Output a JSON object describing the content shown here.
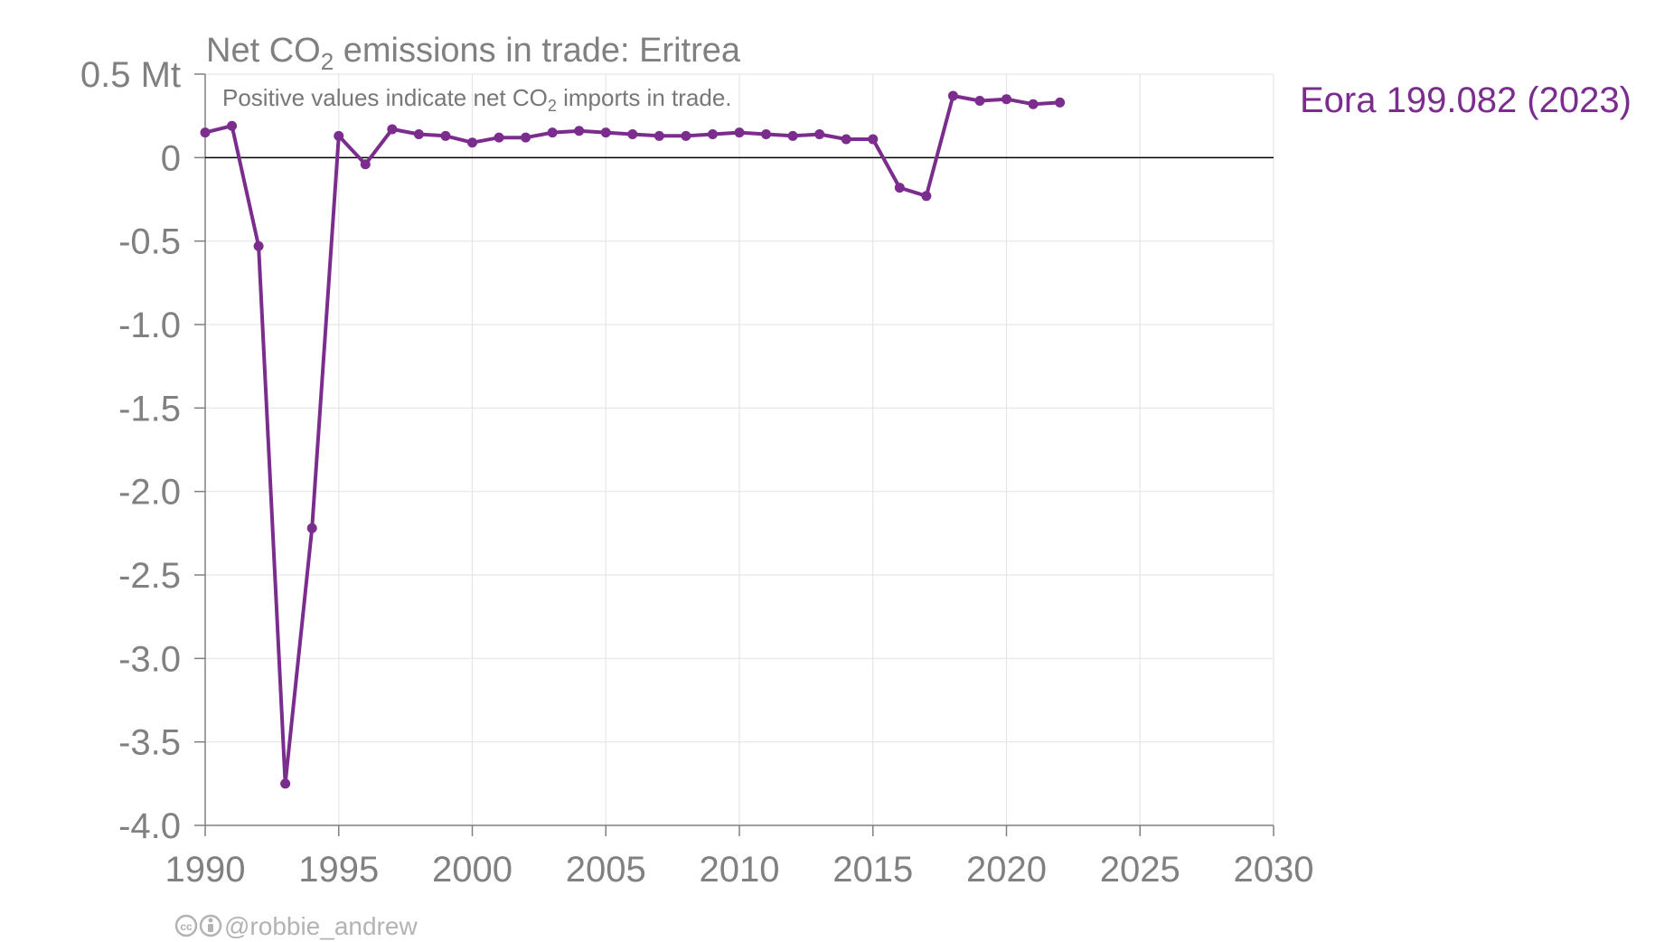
{
  "chart_data": {
    "type": "line",
    "title_parts": [
      "Net CO",
      "2",
      " emissions in trade: Eritrea"
    ],
    "subtitle_parts": [
      "Positive values indicate net CO",
      "2",
      " imports in trade."
    ],
    "xlabel": "",
    "ylabel": "",
    "xlim": [
      1990,
      2030
    ],
    "ylim": [
      -4.0,
      0.5
    ],
    "x_ticks": [
      1990,
      1995,
      2000,
      2005,
      2010,
      2015,
      2020,
      2025,
      2030
    ],
    "y_ticks": [
      -4.0,
      -3.5,
      -3.0,
      -2.5,
      -2.0,
      -1.5,
      -1.0,
      -0.5,
      0,
      0.5
    ],
    "y_tick_labels": [
      "-4.0",
      "-3.5",
      "-3.0",
      "-2.5",
      "-2.0",
      "-1.5",
      "-1.0",
      "-0.5",
      "0",
      "0.5 Mt"
    ],
    "grid": true,
    "zero_line": true,
    "series": [
      {
        "name": "Eora 199.082 (2023)",
        "color": "#7b2d8e",
        "x": [
          1990,
          1991,
          1992,
          1993,
          1994,
          1995,
          1996,
          1997,
          1998,
          1999,
          2000,
          2001,
          2002,
          2003,
          2004,
          2005,
          2006,
          2007,
          2008,
          2009,
          2010,
          2011,
          2012,
          2013,
          2014,
          2015,
          2016,
          2017,
          2018,
          2019,
          2020,
          2021,
          2022
        ],
        "values": [
          0.15,
          0.19,
          -0.53,
          -3.75,
          -2.22,
          0.13,
          -0.04,
          0.17,
          0.14,
          0.13,
          0.09,
          0.12,
          0.12,
          0.15,
          0.16,
          0.15,
          0.14,
          0.13,
          0.13,
          0.14,
          0.15,
          0.14,
          0.13,
          0.14,
          0.11,
          0.11,
          -0.18,
          -0.23,
          0.37,
          0.34,
          0.35,
          0.32,
          0.33
        ]
      }
    ]
  },
  "credit": {
    "icons": [
      "cc-icon",
      "by-icon"
    ],
    "handle": "@robbie_andrew"
  },
  "colors": {
    "axis_text": "#808080",
    "grid": "#e6e6e6",
    "axis": "#808080",
    "zero_line": "#000000"
  }
}
